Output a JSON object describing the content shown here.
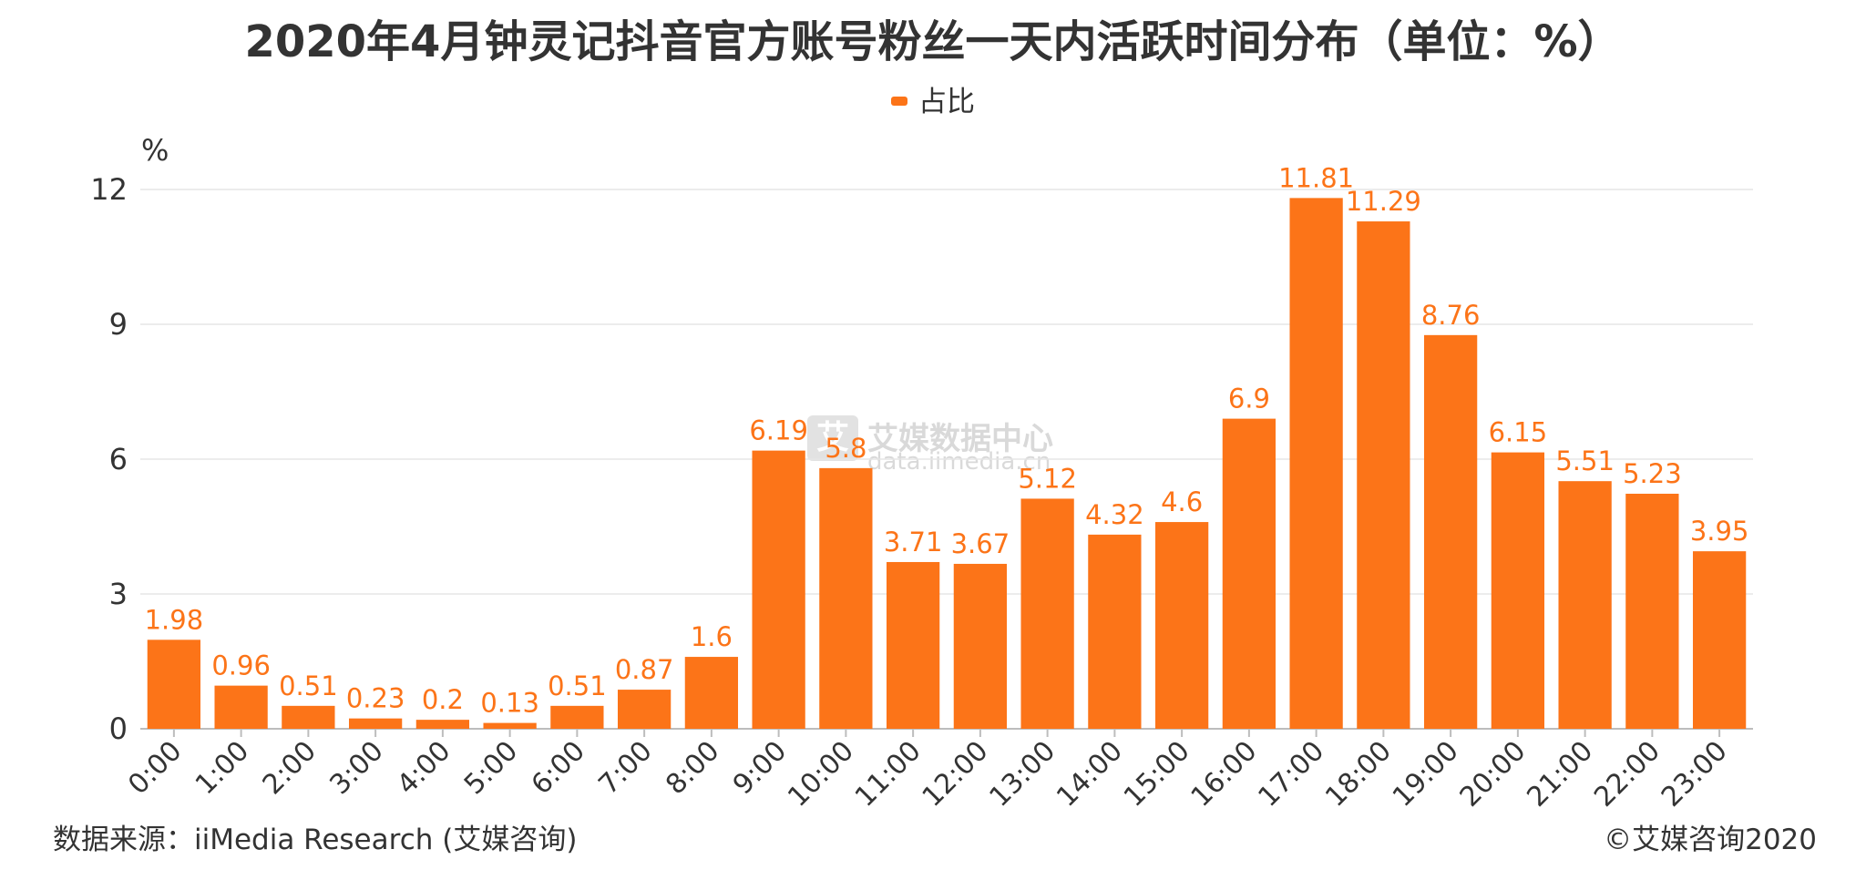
{
  "title": "2020年4月钟灵记抖音官方账号粉丝一天内活跃时间分布（单位：%）",
  "legend": {
    "label": "占比"
  },
  "watermark": {
    "mark": "艾",
    "name": "艾媒数据中心",
    "url": "data.iimedia.cn"
  },
  "source": "数据来源：iiMedia Research (艾媒咨询)",
  "copyright": "©艾媒咨询2020",
  "chart_data": {
    "type": "bar",
    "ylabel": "%",
    "xlabel": "",
    "ylim": [
      0,
      12
    ],
    "yticks": [
      0,
      3,
      6,
      9,
      12
    ],
    "grid": true,
    "legend_position": "top-center",
    "bar_color": "#fc7418",
    "label_color": "#fc7418",
    "categories": [
      "0:00",
      "1:00",
      "2:00",
      "3:00",
      "4:00",
      "5:00",
      "6:00",
      "7:00",
      "8:00",
      "9:00",
      "10:00",
      "11:00",
      "12:00",
      "13:00",
      "14:00",
      "15:00",
      "16:00",
      "17:00",
      "18:00",
      "19:00",
      "20:00",
      "21:00",
      "22:00",
      "23:00"
    ],
    "series": [
      {
        "name": "占比",
        "values": [
          1.98,
          0.96,
          0.51,
          0.23,
          0.2,
          0.13,
          0.51,
          0.87,
          1.6,
          6.19,
          5.8,
          3.71,
          3.67,
          5.12,
          4.32,
          4.6,
          6.9,
          11.81,
          11.29,
          8.76,
          6.15,
          5.51,
          5.23,
          3.95
        ],
        "labels": [
          "1.98",
          "0.96",
          "0.51",
          "0.23",
          "0.2",
          "0.13",
          "0.51",
          "0.87",
          "1.6",
          "6.19",
          "5.8",
          "3.71",
          "3.67",
          "5.12",
          "4.32",
          "4.6",
          "6.9",
          "11.81",
          "11.29",
          "8.76",
          "6.15",
          "5.51",
          "5.23",
          "3.95"
        ]
      }
    ]
  }
}
